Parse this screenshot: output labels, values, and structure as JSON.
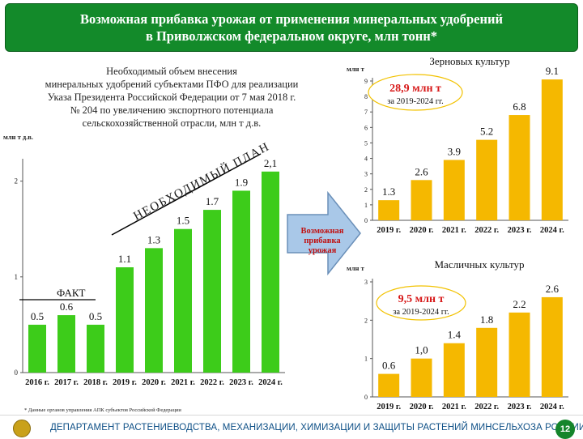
{
  "header": {
    "line1": "Возможная прибавка урожая от применения минеральных удобрений",
    "line2": "в Приволжском федеральном округе, млн тонн*"
  },
  "left_chart_text": {
    "description_lines": [
      "Необходимый объем внесения",
      "минеральных удобрений субъектами ПФО для реализации",
      "Указа Президента Российской Федерации от 7 мая 2018 г.",
      "№ 204 по увеличению экспортного потенциала",
      "сельскохозяйственной отрасли, млн т д.в."
    ],
    "plan_label": "НЕОБХОДИМЫЙ ПЛАН",
    "fact_label": "ФАКТ"
  },
  "arrow_label": [
    "Возможная",
    "прибавка",
    "урожая"
  ],
  "footnote": "* Данные органов управления АПК субъектов Российской Федерации",
  "footer": {
    "text": "ДЕПАРТАМЕНТ РАСТЕНИЕВОДСТВА, МЕХАНИЗАЦИИ, ХИМИЗАЦИИ И ЗАЩИТЫ РАСТЕНИЙ МИНСЕЛЬХОЗА РОССИИ",
    "page": "12"
  },
  "colors": {
    "green": "#3dcc1a",
    "orange": "#f5b800",
    "header": "#138a2a",
    "arrow": "#a9c8e8"
  },
  "chart_data": [
    {
      "type": "bar",
      "title": "",
      "ylabel": "млн т д.в.",
      "categories": [
        "2016 г.",
        "2017 г.",
        "2018 г.",
        "2019 г.",
        "2020 г.",
        "2021 г.",
        "2022 г.",
        "2023 г.",
        "2024 г."
      ],
      "values": [
        0.5,
        0.6,
        0.5,
        1.1,
        1.3,
        1.5,
        1.7,
        1.9,
        2.1
      ],
      "value_labels": [
        "0.5",
        "0.6",
        "0.5",
        "1.1",
        "1.3",
        "1.5",
        "1.7",
        "1.9",
        "2,1"
      ],
      "yticks": [
        "0",
        "1",
        "2"
      ],
      "ylim": [
        0,
        2.2
      ],
      "color": "#3dcc1a"
    },
    {
      "type": "bar",
      "title": "Зерновых культур",
      "ylabel": "млн т",
      "categories": [
        "2019 г.",
        "2020 г.",
        "2021 г.",
        "2022 г.",
        "2023 г.",
        "2024 г."
      ],
      "values": [
        1.3,
        2.6,
        3.9,
        5.2,
        6.8,
        9.1
      ],
      "value_labels": [
        "1.3",
        "2.6",
        "3.9",
        "5.2",
        "6.8",
        "9.1"
      ],
      "yticks": [
        "0",
        "1",
        "2",
        "3",
        "4",
        "5",
        "6",
        "7",
        "8",
        "9"
      ],
      "ylim": [
        0,
        9
      ],
      "annotation": {
        "value": "28,9 млн т",
        "period": "за 2019-2024 гг."
      },
      "color": "#f5b800"
    },
    {
      "type": "bar",
      "title": "Масличных культур",
      "ylabel": "млн т",
      "categories": [
        "2019 г.",
        "2020 г.",
        "2021 г.",
        "2022 г.",
        "2023 г.",
        "2024 г."
      ],
      "values": [
        0.6,
        1.0,
        1.4,
        1.8,
        2.2,
        2.6
      ],
      "value_labels": [
        "0.6",
        "1,0",
        "1.4",
        "1.8",
        "2.2",
        "2.6"
      ],
      "yticks": [
        "0",
        "1",
        "2",
        "3"
      ],
      "ylim": [
        0,
        3
      ],
      "annotation": {
        "value": "9,5 млн т",
        "period": "за 2019-2024 гг."
      },
      "color": "#f5b800"
    }
  ]
}
